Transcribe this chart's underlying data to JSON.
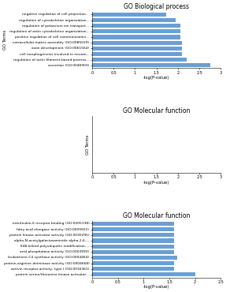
{
  "title_bio": "GO Biological process",
  "title_mol1": "GO Molecular function",
  "title_mol2": "GO Molecular function",
  "xlabel": "-log(P-value)",
  "ylabel": "GO Terms",
  "bar_color": "#6a9fd4",
  "bio_terms": [
    "secretion (GO:0046903)",
    "regulation of actin filament-based process...",
    "cell morphogenesis involved in neuron...",
    "axon development (GO:0061564)",
    "extracellular matrix assembly (GO:0085029)",
    "positive regulation of cell communication...",
    "regulation of actin cytoskeleton organization...",
    "regulation of potassium ion transport...",
    "regulation of cytoskeleton organization...",
    "negative regulation of cell projection..."
  ],
  "bio_values": [
    2.75,
    2.2,
    2.1,
    2.1,
    2.1,
    2.05,
    2.05,
    2.05,
    1.95,
    1.72
  ],
  "bio_xlim": [
    0,
    3
  ],
  "bio_xticks": [
    0,
    0.5,
    1,
    1.5,
    2,
    2.5,
    3
  ],
  "mol2_terms": [
    "protein serine/threonine kinase activator...",
    "activin receptor activity, type I (GO:0016361)",
    "protein-arginine deiminase activity (GO:0004668)",
    "leukotriene-C4 synthase activity (GO:0004464)",
    "acid phosphatase activity (GO:0003993)",
    "K48-linked polyubiquitin modification-...",
    "alpha-N-acetylgalactosaminide alpha-2,6-...",
    "protein kinase activator activity (GO:0030295)",
    "fatty acid elongase activity (GO:0009922)",
    "interleukin-6 receptor binding (GO:0005138)"
  ],
  "mol2_values": [
    2.0,
    1.6,
    1.6,
    1.65,
    1.6,
    1.6,
    1.6,
    1.6,
    1.6,
    1.6
  ],
  "mol2_xlim": [
    0,
    2.5
  ],
  "mol2_xticks": [
    0,
    0.5,
    1,
    1.5,
    2,
    2.5
  ],
  "mol1_xlim": [
    0,
    3
  ],
  "mol1_xticks": [
    0,
    0.5,
    1,
    1.5,
    2,
    2.5,
    3
  ]
}
